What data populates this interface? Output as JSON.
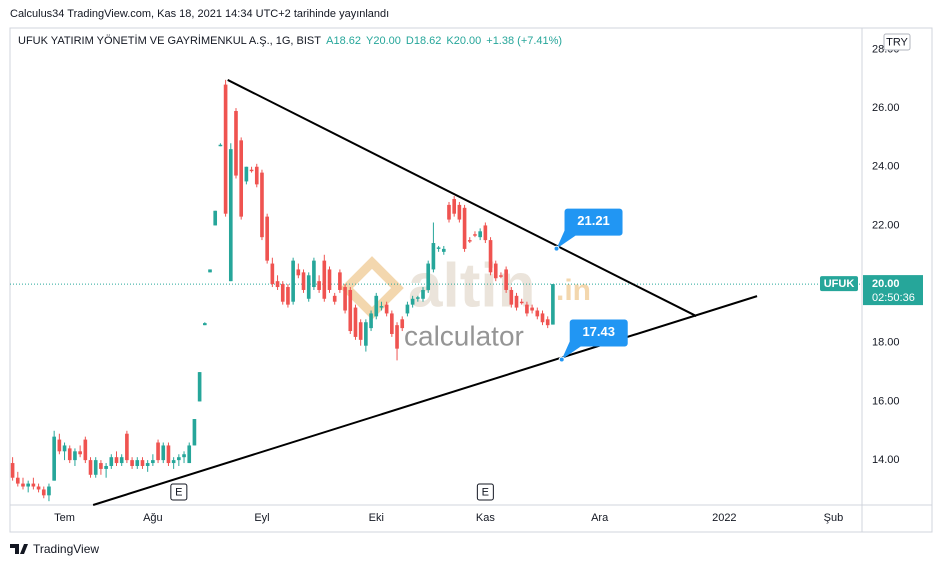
{
  "chart_data": {
    "type": "candlestick",
    "published": "Calculus34 TradingView.com, Kas 18, 2021 14:34 UTC+2 tarihinde yayınlandı",
    "legend_title": "UFUK YATIRIM YÖNETİM VE GAYRİMENKUL A.Ş., 1G, BIST",
    "legend_values": [
      "A18.62",
      "Y20.00",
      "D18.62",
      "K20.00",
      "+1.38 (+7.41%)"
    ],
    "currency": "TRY",
    "symbol": "UFUK",
    "last_price": {
      "value": 20,
      "label": "20.00"
    },
    "countdown": "02:50:36",
    "up_color": "#26a69a",
    "down_color": "#ef5350",
    "ylim": [
      12.47,
      28.73
    ],
    "yticks": [
      {
        "value": 14,
        "label": "14.00"
      },
      {
        "value": 16,
        "label": "16.00"
      },
      {
        "value": 18,
        "label": "18.00"
      },
      {
        "value": 20,
        "label": "20.00"
      },
      {
        "value": 22,
        "label": "22.00"
      },
      {
        "value": 24,
        "label": "24.00"
      },
      {
        "value": 26,
        "label": "26.00"
      },
      {
        "value": 28,
        "label": "28.00"
      }
    ],
    "categories": [
      null,
      null,
      null,
      null,
      null,
      null,
      null,
      null,
      null,
      null,
      "Tem",
      null,
      null,
      null,
      null,
      null,
      null,
      null,
      null,
      null,
      null,
      null,
      null,
      null,
      null,
      null,
      null,
      "Ağu",
      null,
      null,
      null,
      null,
      null,
      null,
      null,
      null,
      null,
      null,
      null,
      null,
      null,
      null,
      null,
      null,
      null,
      null,
      null,
      null,
      "Eyl",
      null,
      null,
      null,
      null,
      null,
      null,
      null,
      null,
      null,
      null,
      null,
      null,
      null,
      null,
      null,
      null,
      null,
      null,
      null,
      null,
      null,
      "Eki",
      null,
      null,
      null,
      null,
      null,
      null,
      null,
      null,
      null,
      null,
      null,
      null,
      null,
      null,
      null,
      null,
      null,
      null,
      null,
      null,
      "Kas",
      null,
      null,
      null,
      null,
      null,
      null,
      null,
      null,
      null,
      null,
      null,
      null,
      null,
      null,
      null,
      null,
      null,
      null,
      null,
      null,
      null,
      "Ara",
      null,
      null,
      null,
      null,
      null,
      null,
      null,
      null,
      null,
      null,
      null,
      null,
      null,
      null,
      null,
      null,
      null,
      null,
      null,
      null,
      null,
      null,
      null,
      "2022",
      null,
      null,
      null,
      null,
      null,
      null,
      null,
      null,
      null,
      null,
      null,
      null,
      null,
      null,
      null,
      null,
      null,
      null,
      null,
      null,
      "Şub",
      null,
      null,
      null,
      null,
      null
    ],
    "ohlc": [
      [
        13.9,
        14.1,
        13.3,
        13.4
      ],
      [
        13.4,
        13.6,
        13.1,
        13.2
      ],
      [
        13.2,
        13.4,
        13.0,
        13.1
      ],
      [
        13.1,
        13.3,
        12.9,
        13.2
      ],
      [
        13.2,
        13.4,
        13.0,
        13.1
      ],
      [
        13.1,
        13.2,
        12.9,
        13.0
      ],
      [
        13.0,
        13.1,
        12.7,
        12.8
      ],
      [
        12.8,
        13.2,
        12.6,
        13.1
      ],
      [
        13.3,
        15.0,
        13.3,
        14.8
      ],
      [
        14.7,
        14.9,
        14.2,
        14.3
      ],
      [
        14.3,
        14.6,
        14.0,
        14.5
      ],
      [
        14.4,
        14.5,
        13.9,
        14.0
      ],
      [
        14.0,
        14.4,
        13.8,
        14.3
      ],
      [
        14.3,
        14.5,
        14.1,
        14.2
      ],
      [
        14.7,
        14.8,
        13.9,
        14.0
      ],
      [
        14.0,
        14.1,
        13.4,
        13.5
      ],
      [
        13.5,
        14.1,
        13.4,
        14.0
      ],
      [
        13.9,
        14.0,
        13.5,
        13.7
      ],
      [
        13.7,
        13.9,
        13.4,
        13.8
      ],
      [
        13.8,
        14.2,
        13.7,
        14.1
      ],
      [
        14.1,
        14.3,
        13.8,
        13.9
      ],
      [
        13.9,
        14.2,
        13.8,
        14.1
      ],
      [
        14.9,
        15.0,
        13.9,
        14.0
      ],
      [
        14.0,
        14.1,
        13.7,
        13.8
      ],
      [
        13.8,
        14.1,
        13.7,
        14.0
      ],
      [
        14.0,
        14.1,
        13.7,
        13.8
      ],
      [
        13.8,
        14.0,
        13.6,
        13.9
      ],
      [
        13.9,
        14.2,
        13.8,
        14.0
      ],
      [
        14.6,
        14.7,
        13.9,
        14.0
      ],
      [
        14.0,
        14.6,
        13.9,
        14.5
      ],
      [
        14.5,
        14.6,
        13.8,
        13.9
      ],
      [
        13.9,
        14.1,
        13.7,
        14.0
      ],
      [
        14.0,
        14.2,
        13.8,
        14.1
      ],
      [
        14.1,
        14.3,
        13.9,
        14.2
      ],
      [
        13.9,
        14.6,
        13.9,
        14.5
      ],
      [
        14.5,
        15.4,
        14.5,
        15.4
      ],
      [
        16.0,
        17.0,
        16.0,
        17.0
      ],
      [
        18.6,
        18.7,
        18.6,
        18.67
      ],
      [
        20.4,
        20.5,
        20.4,
        20.5
      ],
      [
        22.0,
        22.5,
        22.0,
        22.5
      ],
      [
        24.7,
        24.8,
        24.7,
        24.75
      ],
      [
        26.8,
        26.96,
        22.3,
        22.4
      ],
      [
        20.1,
        24.8,
        20.1,
        24.6
      ],
      [
        25.9,
        26.0,
        23.6,
        23.7
      ],
      [
        24.9,
        25.0,
        22.2,
        22.3
      ],
      [
        23.5,
        24.0,
        23.4,
        24.0
      ],
      [
        23.9,
        24.0,
        23.8,
        23.85
      ],
      [
        24.0,
        24.1,
        23.3,
        23.4
      ],
      [
        23.8,
        23.9,
        21.5,
        21.6
      ],
      [
        22.3,
        22.4,
        20.7,
        20.8
      ],
      [
        20.7,
        20.9,
        19.9,
        20.0
      ],
      [
        20.1,
        20.3,
        19.8,
        19.9
      ],
      [
        20.0,
        20.1,
        19.3,
        19.4
      ],
      [
        19.9,
        20.0,
        19.2,
        19.3
      ],
      [
        19.4,
        20.9,
        19.3,
        20.8
      ],
      [
        20.5,
        20.7,
        20.2,
        20.3
      ],
      [
        20.4,
        20.5,
        19.7,
        19.8
      ],
      [
        19.5,
        20.4,
        19.4,
        20.3
      ],
      [
        19.9,
        20.9,
        19.8,
        20.8
      ],
      [
        20.1,
        20.3,
        19.7,
        19.8
      ],
      [
        20.8,
        21.0,
        19.4,
        19.5
      ],
      [
        20.5,
        20.6,
        19.7,
        19.8
      ],
      [
        19.6,
        19.7,
        19.3,
        19.4
      ],
      [
        20.4,
        20.5,
        19.7,
        19.8
      ],
      [
        19.9,
        20.0,
        19.0,
        19.1
      ],
      [
        19.8,
        19.9,
        18.3,
        18.4
      ],
      [
        19.2,
        19.3,
        18.1,
        18.2
      ],
      [
        18.7,
        18.8,
        17.9,
        18.1
      ],
      [
        17.9,
        18.8,
        17.7,
        18.7
      ],
      [
        18.5,
        19.1,
        18.4,
        19.0
      ],
      [
        18.9,
        19.7,
        18.8,
        19.6
      ],
      [
        19.2,
        19.4,
        19.1,
        19.25
      ],
      [
        19.3,
        19.4,
        18.9,
        19.0
      ],
      [
        19.0,
        19.1,
        18.2,
        18.3
      ],
      [
        18.6,
        18.7,
        17.4,
        17.8
      ],
      [
        18.8,
        18.9,
        18.4,
        18.5
      ],
      [
        19.0,
        19.4,
        18.9,
        19.3
      ],
      [
        19.3,
        19.6,
        19.2,
        19.5
      ],
      [
        19.5,
        19.6,
        19.4,
        19.55
      ],
      [
        19.5,
        19.9,
        19.4,
        19.8
      ],
      [
        19.8,
        20.8,
        19.7,
        20.7
      ],
      [
        20.5,
        22.1,
        20.4,
        21.4
      ],
      [
        21.2,
        21.3,
        21.1,
        21.25
      ],
      [
        21.1,
        21.3,
        21.0,
        21.2
      ],
      [
        22.7,
        22.8,
        22.1,
        22.2
      ],
      [
        22.9,
        23.0,
        22.3,
        22.4
      ],
      [
        22.7,
        22.8,
        22.1,
        22.2
      ],
      [
        22.6,
        22.7,
        21.1,
        21.2
      ],
      [
        21.5,
        21.6,
        21.4,
        21.45
      ],
      [
        21.7,
        21.8,
        21.6,
        21.65
      ],
      [
        21.6,
        21.9,
        21.5,
        21.8
      ],
      [
        22.0,
        22.1,
        21.4,
        21.5
      ],
      [
        21.5,
        21.6,
        20.3,
        20.4
      ],
      [
        20.7,
        20.8,
        20.1,
        20.2
      ],
      [
        20.3,
        20.4,
        20.2,
        20.25
      ],
      [
        20.5,
        20.6,
        19.7,
        19.8
      ],
      [
        19.8,
        19.9,
        19.2,
        19.3
      ],
      [
        19.6,
        19.7,
        19.1,
        19.2
      ],
      [
        19.4,
        19.5,
        19.3,
        19.35
      ],
      [
        19.3,
        19.4,
        18.9,
        19.0
      ],
      [
        19.2,
        19.3,
        19.0,
        19.1
      ],
      [
        19.1,
        19.2,
        18.8,
        18.9
      ],
      [
        19.0,
        19.1,
        18.6,
        18.7
      ],
      [
        18.8,
        18.9,
        18.5,
        18.6
      ],
      [
        18.62,
        20.0,
        18.62,
        20.0
      ],
      null,
      null,
      null,
      null,
      null,
      null,
      null,
      null,
      null,
      null,
      null,
      null,
      null,
      null,
      null,
      null,
      null,
      null,
      null,
      null,
      null,
      null,
      null,
      null,
      null,
      null,
      null,
      null,
      null,
      null,
      null,
      null,
      null,
      null,
      null,
      null,
      null,
      null,
      null,
      null,
      null,
      null,
      null,
      null,
      null,
      null,
      null,
      null,
      null,
      null,
      null,
      null,
      null,
      null,
      null,
      null,
      null,
      null,
      null
    ],
    "trendlines": [
      {
        "x": [
          41.4,
          131.6
        ],
        "y": [
          26.96,
          18.91
        ]
      },
      {
        "x": [
          15.5,
          143.3
        ],
        "y": [
          12.47,
          19.59
        ]
      }
    ],
    "annotations": [
      {
        "x": 104.7,
        "value": 21.21
      },
      {
        "x": 105.7,
        "value": 17.43
      }
    ],
    "events": [
      {
        "x": 32,
        "label": "E"
      },
      {
        "x": 91,
        "label": "E"
      }
    ],
    "watermark": [
      "altin",
      ".in",
      "calculator"
    ],
    "footer": "TradingView"
  }
}
